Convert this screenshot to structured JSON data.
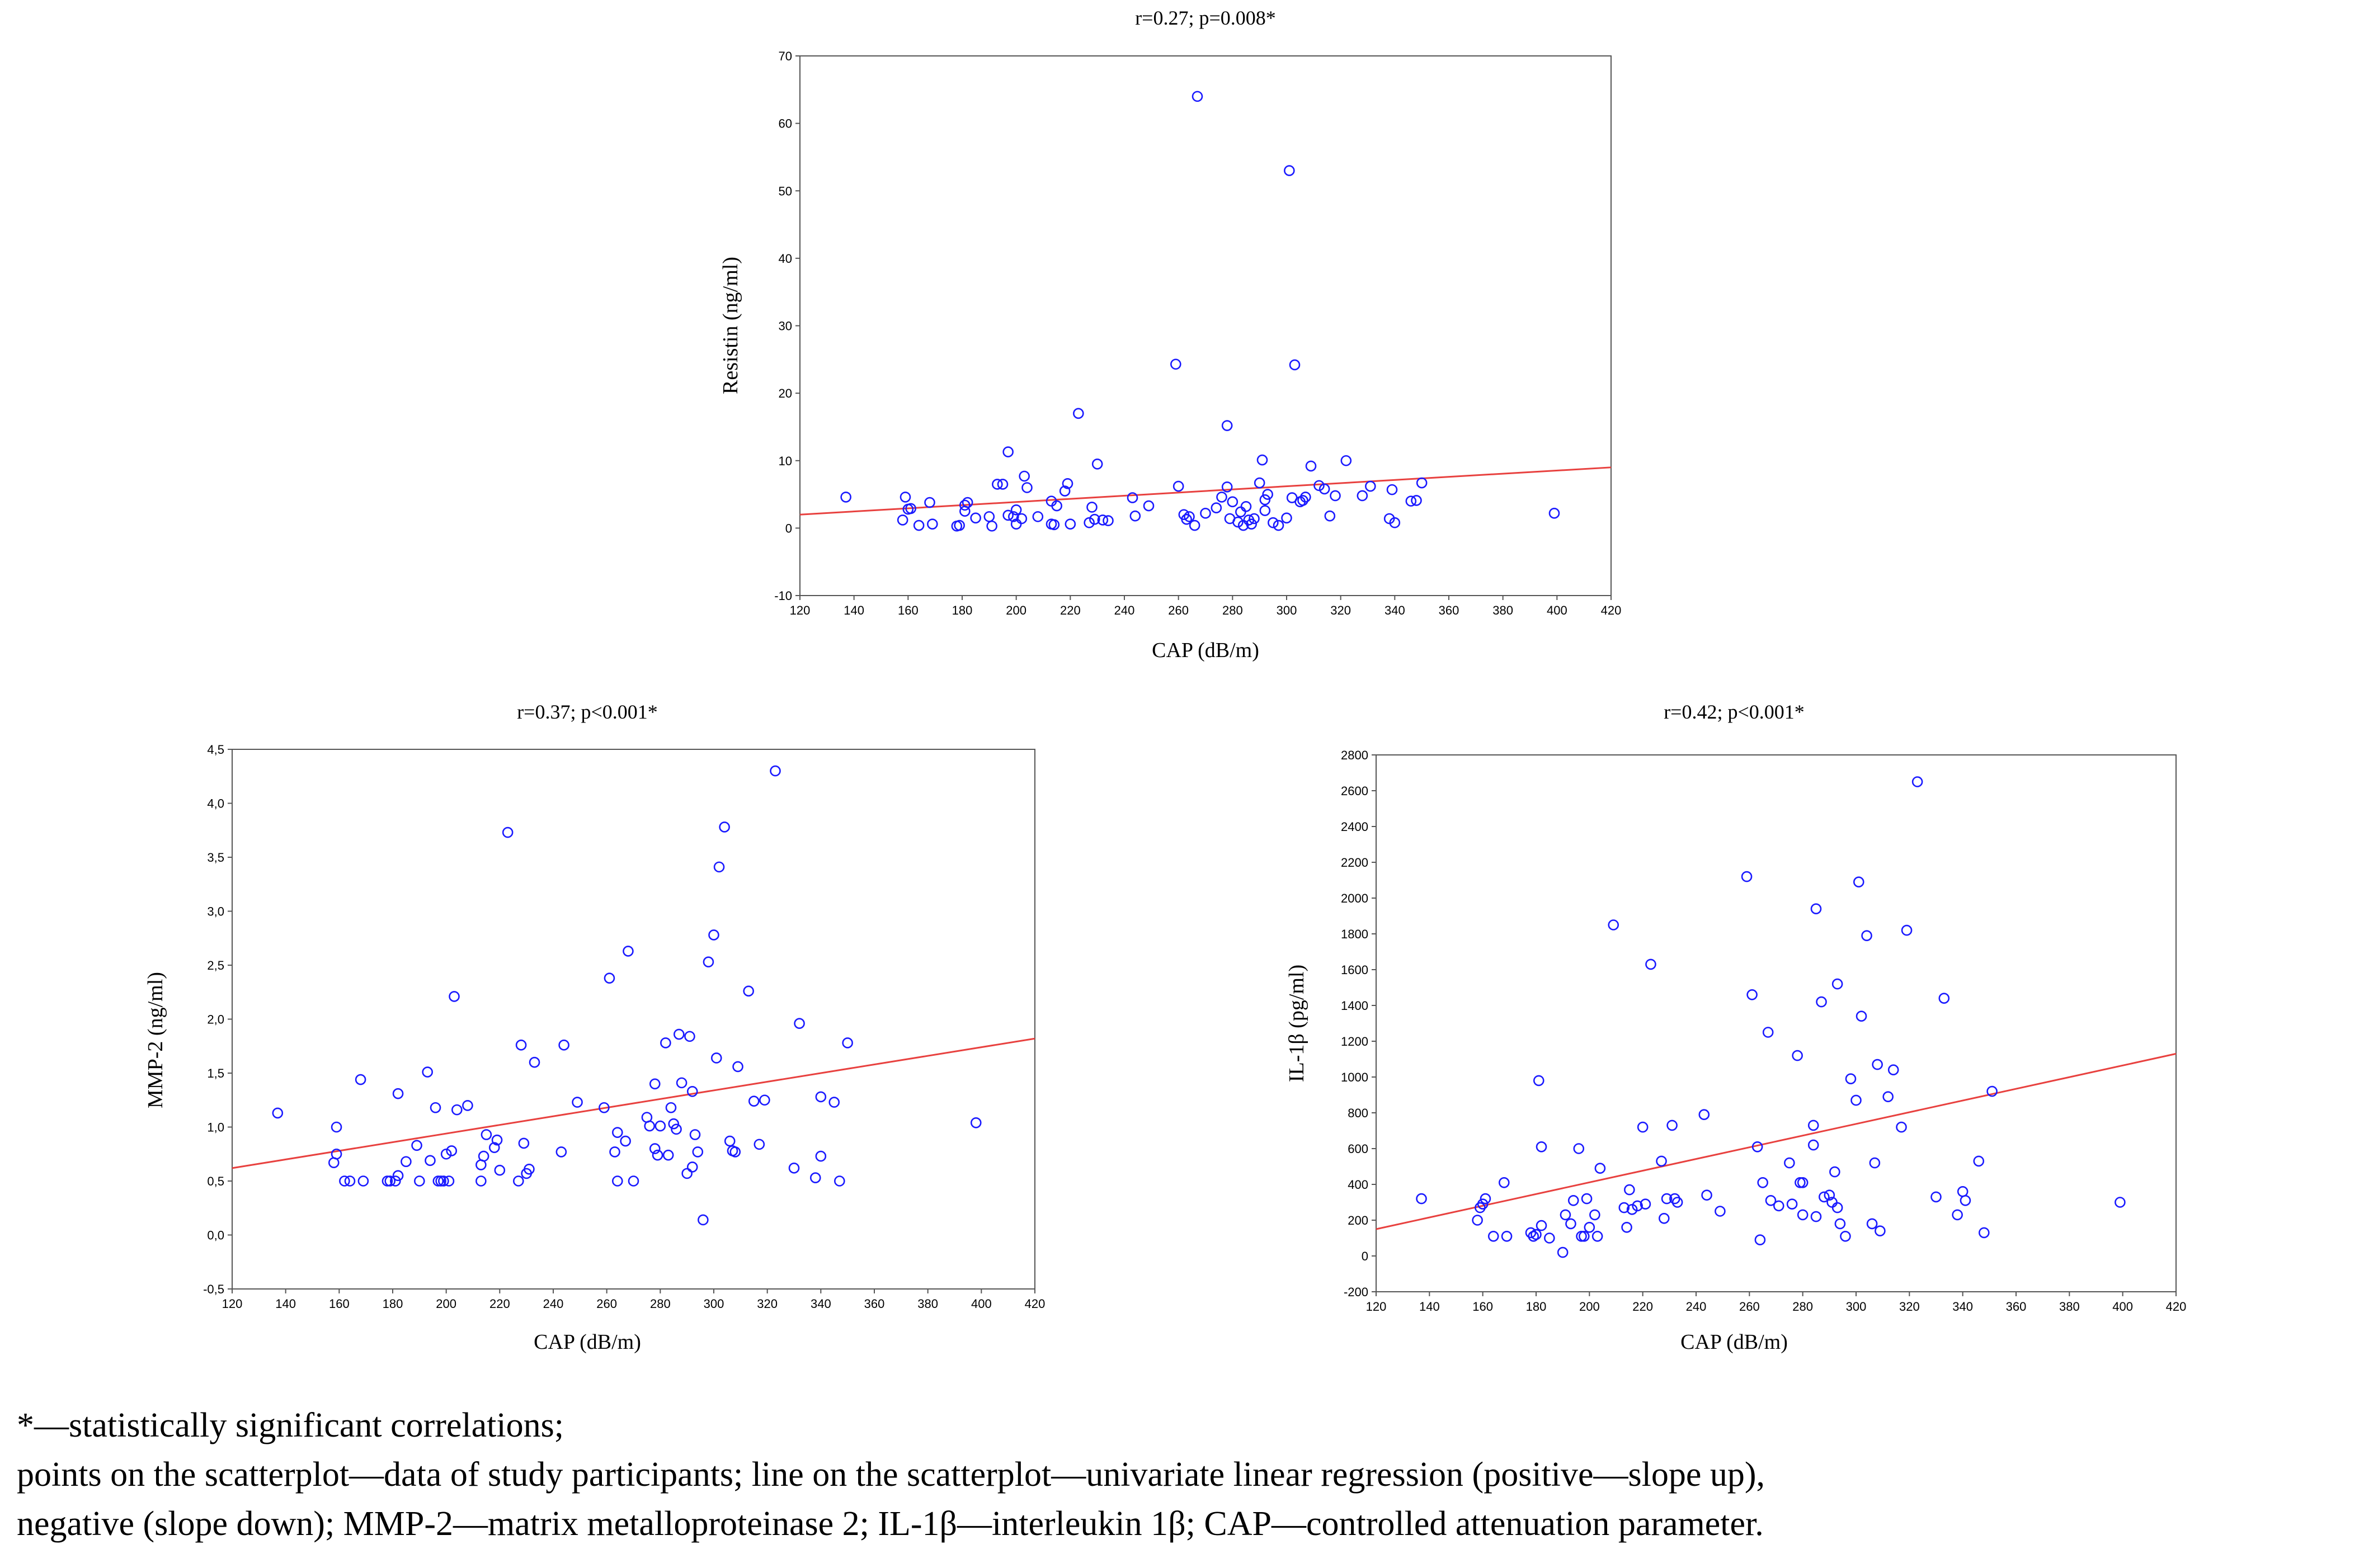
{
  "chart_data": [
    {
      "type": "scatter",
      "title": "r=0.27; p=0.008*",
      "xlabel": "CAP (dB/m)",
      "ylabel": "Resistin (ng/ml)",
      "xlim": [
        120,
        420
      ],
      "ylim": [
        -10,
        70
      ],
      "xticks": [
        "120",
        "140",
        "160",
        "180",
        "200",
        "220",
        "240",
        "260",
        "280",
        "300",
        "320",
        "340",
        "360",
        "380",
        "400",
        "420"
      ],
      "yticks": [
        "-10",
        "0",
        "10",
        "20",
        "30",
        "40",
        "50",
        "60",
        "70"
      ],
      "grid": false,
      "regression": {
        "x": [
          120,
          420
        ],
        "y": [
          2.0,
          9.0
        ],
        "color": "#e8413f"
      },
      "point_color": "#1a1aff",
      "points": [
        [
          137,
          4.6
        ],
        [
          158,
          1.2
        ],
        [
          159,
          4.6
        ],
        [
          160,
          2.8
        ],
        [
          161,
          2.9
        ],
        [
          164,
          0.4
        ],
        [
          168,
          3.8
        ],
        [
          169,
          0.6
        ],
        [
          178,
          0.3
        ],
        [
          179,
          0.4
        ],
        [
          181,
          2.5
        ],
        [
          181,
          3.4
        ],
        [
          182,
          3.8
        ],
        [
          185,
          1.5
        ],
        [
          190,
          1.7
        ],
        [
          191,
          0.3
        ],
        [
          193,
          6.5
        ],
        [
          195,
          6.5
        ],
        [
          197,
          11.3
        ],
        [
          197,
          1.9
        ],
        [
          199,
          1.7
        ],
        [
          200,
          0.6
        ],
        [
          200,
          2.7
        ],
        [
          202,
          1.4
        ],
        [
          203,
          7.7
        ],
        [
          204,
          6.0
        ],
        [
          208,
          1.7
        ],
        [
          213,
          4.0
        ],
        [
          213,
          0.6
        ],
        [
          214,
          0.5
        ],
        [
          215,
          3.3
        ],
        [
          218,
          5.5
        ],
        [
          219,
          6.6
        ],
        [
          220,
          0.6
        ],
        [
          223,
          17.0
        ],
        [
          227,
          0.8
        ],
        [
          228,
          3.1
        ],
        [
          229,
          1.3
        ],
        [
          230,
          9.5
        ],
        [
          232,
          1.2
        ],
        [
          234,
          1.1
        ],
        [
          243,
          4.5
        ],
        [
          244,
          1.8
        ],
        [
          249,
          3.3
        ],
        [
          259,
          24.3
        ],
        [
          260,
          6.2
        ],
        [
          262,
          2.0
        ],
        [
          263,
          1.3
        ],
        [
          264,
          1.7
        ],
        [
          266,
          0.4
        ],
        [
          267,
          64.0
        ],
        [
          270,
          2.2
        ],
        [
          274,
          3.0
        ],
        [
          276,
          4.6
        ],
        [
          278,
          15.2
        ],
        [
          278,
          6.1
        ],
        [
          279,
          1.4
        ],
        [
          280,
          3.9
        ],
        [
          282,
          0.9
        ],
        [
          283,
          2.4
        ],
        [
          284,
          0.4
        ],
        [
          285,
          3.2
        ],
        [
          286,
          1.2
        ],
        [
          287,
          0.6
        ],
        [
          288,
          1.4
        ],
        [
          290,
          6.7
        ],
        [
          291,
          10.1
        ],
        [
          292,
          2.6
        ],
        [
          292,
          4.2
        ],
        [
          293,
          5.0
        ],
        [
          295,
          0.8
        ],
        [
          297,
          0.4
        ],
        [
          300,
          1.5
        ],
        [
          301,
          53.0
        ],
        [
          302,
          4.5
        ],
        [
          303,
          24.2
        ],
        [
          305,
          3.9
        ],
        [
          306,
          4.1
        ],
        [
          307,
          4.6
        ],
        [
          309,
          9.2
        ],
        [
          312,
          6.3
        ],
        [
          314,
          5.8
        ],
        [
          316,
          1.8
        ],
        [
          318,
          4.8
        ],
        [
          322,
          10.0
        ],
        [
          328,
          4.8
        ],
        [
          331,
          6.2
        ],
        [
          338,
          1.4
        ],
        [
          339,
          5.7
        ],
        [
          340,
          0.8
        ],
        [
          346,
          4.0
        ],
        [
          348,
          4.1
        ],
        [
          350,
          6.7
        ],
        [
          399,
          2.2
        ]
      ]
    },
    {
      "type": "scatter",
      "title": "r=0.37; p<0.001*",
      "xlabel": "CAP (dB/m)",
      "ylabel": "MMP-2 (ng/ml)",
      "xlim": [
        120,
        420
      ],
      "ylim": [
        -0.5,
        4.5
      ],
      "xticks": [
        "120",
        "140",
        "160",
        "180",
        "200",
        "220",
        "240",
        "260",
        "280",
        "300",
        "320",
        "340",
        "360",
        "380",
        "400",
        "420"
      ],
      "yticks": [
        "-0,5",
        "0,0",
        "0,5",
        "1,0",
        "1,5",
        "2,0",
        "2,5",
        "3,0",
        "3,5",
        "4,0",
        "4,5"
      ],
      "grid": false,
      "regression": {
        "x": [
          120,
          420
        ],
        "y": [
          0.62,
          1.82
        ],
        "color": "#e8413f"
      },
      "point_color": "#1a1aff",
      "points": [
        [
          137,
          1.13
        ],
        [
          158,
          0.67
        ],
        [
          159,
          1.0
        ],
        [
          159,
          0.75
        ],
        [
          162,
          0.5
        ],
        [
          164,
          0.5
        ],
        [
          168,
          1.44
        ],
        [
          169,
          0.5
        ],
        [
          178,
          0.5
        ],
        [
          179,
          0.5
        ],
        [
          181,
          0.5
        ],
        [
          182,
          0.55
        ],
        [
          182,
          1.31
        ],
        [
          185,
          0.68
        ],
        [
          189,
          0.83
        ],
        [
          190,
          0.5
        ],
        [
          193,
          1.51
        ],
        [
          194,
          0.69
        ],
        [
          196,
          1.18
        ],
        [
          197,
          0.5
        ],
        [
          198,
          0.5
        ],
        [
          199,
          0.5
        ],
        [
          200,
          0.75
        ],
        [
          201,
          0.5
        ],
        [
          202,
          0.78
        ],
        [
          203,
          2.21
        ],
        [
          204,
          1.16
        ],
        [
          208,
          1.2
        ],
        [
          213,
          0.65
        ],
        [
          213,
          0.5
        ],
        [
          214,
          0.73
        ],
        [
          215,
          0.93
        ],
        [
          218,
          0.81
        ],
        [
          219,
          0.88
        ],
        [
          220,
          0.6
        ],
        [
          223,
          3.73
        ],
        [
          227,
          0.5
        ],
        [
          228,
          1.76
        ],
        [
          229,
          0.85
        ],
        [
          230,
          0.57
        ],
        [
          231,
          0.61
        ],
        [
          233,
          1.6
        ],
        [
          243,
          0.77
        ],
        [
          244,
          1.76
        ],
        [
          249,
          1.23
        ],
        [
          259,
          1.18
        ],
        [
          261,
          2.38
        ],
        [
          263,
          0.77
        ],
        [
          264,
          0.5
        ],
        [
          264,
          0.95
        ],
        [
          267,
          0.87
        ],
        [
          268,
          2.63
        ],
        [
          270,
          0.5
        ],
        [
          275,
          1.09
        ],
        [
          276,
          1.01
        ],
        [
          278,
          1.4
        ],
        [
          278,
          0.8
        ],
        [
          279,
          0.74
        ],
        [
          280,
          1.01
        ],
        [
          282,
          1.78
        ],
        [
          283,
          0.74
        ],
        [
          284,
          1.18
        ],
        [
          285,
          1.03
        ],
        [
          286,
          0.98
        ],
        [
          287,
          1.86
        ],
        [
          288,
          1.41
        ],
        [
          290,
          0.57
        ],
        [
          291,
          1.84
        ],
        [
          292,
          0.63
        ],
        [
          292,
          1.33
        ],
        [
          293,
          0.93
        ],
        [
          294,
          0.77
        ],
        [
          296,
          0.14
        ],
        [
          298,
          2.53
        ],
        [
          300,
          2.78
        ],
        [
          301,
          1.64
        ],
        [
          302,
          3.41
        ],
        [
          304,
          3.78
        ],
        [
          306,
          0.87
        ],
        [
          307,
          0.78
        ],
        [
          308,
          0.77
        ],
        [
          309,
          1.56
        ],
        [
          313,
          2.26
        ],
        [
          315,
          1.24
        ],
        [
          317,
          0.84
        ],
        [
          319,
          1.25
        ],
        [
          323,
          4.3
        ],
        [
          330,
          0.62
        ],
        [
          332,
          1.96
        ],
        [
          338,
          0.53
        ],
        [
          340,
          1.28
        ],
        [
          340,
          0.73
        ],
        [
          345,
          1.23
        ],
        [
          347,
          0.5
        ],
        [
          350,
          1.78
        ],
        [
          398,
          1.04
        ]
      ]
    },
    {
      "type": "scatter",
      "title": "r=0.42; p<0.001*",
      "xlabel": "CAP (dB/m)",
      "ylabel": "IL-1β (pg/ml)",
      "xlim": [
        120,
        420
      ],
      "ylim": [
        -200,
        2800
      ],
      "xticks": [
        "120",
        "140",
        "160",
        "180",
        "200",
        "220",
        "240",
        "260",
        "280",
        "300",
        "320",
        "340",
        "360",
        "380",
        "400",
        "420"
      ],
      "yticks": [
        "-200",
        "0",
        "200",
        "400",
        "600",
        "800",
        "1000",
        "1200",
        "1400",
        "1600",
        "1800",
        "2000",
        "2200",
        "2400",
        "2600",
        "2800"
      ],
      "grid": false,
      "regression": {
        "x": [
          120,
          420
        ],
        "y": [
          150,
          1130
        ],
        "color": "#e8413f"
      },
      "point_color": "#1a1aff",
      "points": [
        [
          137,
          320
        ],
        [
          158,
          200
        ],
        [
          159,
          270
        ],
        [
          160,
          290
        ],
        [
          161,
          320
        ],
        [
          164,
          110
        ],
        [
          168,
          410
        ],
        [
          169,
          110
        ],
        [
          178,
          130
        ],
        [
          179,
          110
        ],
        [
          180,
          120
        ],
        [
          181,
          980
        ],
        [
          182,
          610
        ],
        [
          182,
          170
        ],
        [
          185,
          100
        ],
        [
          190,
          20
        ],
        [
          191,
          230
        ],
        [
          193,
          180
        ],
        [
          194,
          310
        ],
        [
          196,
          600
        ],
        [
          197,
          110
        ],
        [
          198,
          110
        ],
        [
          199,
          320
        ],
        [
          200,
          160
        ],
        [
          202,
          230
        ],
        [
          203,
          110
        ],
        [
          204,
          490
        ],
        [
          209,
          1850
        ],
        [
          213,
          270
        ],
        [
          214,
          160
        ],
        [
          215,
          370
        ],
        [
          216,
          260
        ],
        [
          218,
          280
        ],
        [
          220,
          720
        ],
        [
          221,
          290
        ],
        [
          223,
          1630
        ],
        [
          227,
          530
        ],
        [
          228,
          210
        ],
        [
          229,
          320
        ],
        [
          231,
          730
        ],
        [
          232,
          320
        ],
        [
          233,
          300
        ],
        [
          243,
          790
        ],
        [
          244,
          340
        ],
        [
          249,
          250
        ],
        [
          259,
          2120
        ],
        [
          261,
          1460
        ],
        [
          263,
          610
        ],
        [
          264,
          90
        ],
        [
          265,
          410
        ],
        [
          267,
          1250
        ],
        [
          268,
          310
        ],
        [
          271,
          280
        ],
        [
          275,
          520
        ],
        [
          276,
          290
        ],
        [
          278,
          1120
        ],
        [
          279,
          410
        ],
        [
          280,
          410
        ],
        [
          280,
          230
        ],
        [
          284,
          620
        ],
        [
          284,
          730
        ],
        [
          285,
          220
        ],
        [
          285,
          1940
        ],
        [
          287,
          1420
        ],
        [
          288,
          330
        ],
        [
          290,
          340
        ],
        [
          291,
          300
        ],
        [
          292,
          470
        ],
        [
          293,
          1520
        ],
        [
          293,
          270
        ],
        [
          294,
          180
        ],
        [
          296,
          110
        ],
        [
          298,
          990
        ],
        [
          300,
          870
        ],
        [
          301,
          2090
        ],
        [
          302,
          1340
        ],
        [
          304,
          1790
        ],
        [
          306,
          180
        ],
        [
          307,
          520
        ],
        [
          308,
          1070
        ],
        [
          309,
          140
        ],
        [
          312,
          890
        ],
        [
          314,
          1040
        ],
        [
          317,
          720
        ],
        [
          319,
          1820
        ],
        [
          323,
          2650
        ],
        [
          330,
          330
        ],
        [
          333,
          1440
        ],
        [
          338,
          230
        ],
        [
          340,
          360
        ],
        [
          341,
          310
        ],
        [
          346,
          530
        ],
        [
          348,
          130
        ],
        [
          351,
          920
        ],
        [
          399,
          300
        ]
      ]
    }
  ],
  "footnote": {
    "line1": "*—statistically significant correlations;",
    "line2": "points on the scatterplot—data of study participants; line on the scatterplot—univariate linear regression (positive—slope up),",
    "line3": "negative (slope down); MMP-2—matrix metalloproteinase 2; IL-1β—interleukin 1β; CAP—controlled attenuation parameter."
  }
}
